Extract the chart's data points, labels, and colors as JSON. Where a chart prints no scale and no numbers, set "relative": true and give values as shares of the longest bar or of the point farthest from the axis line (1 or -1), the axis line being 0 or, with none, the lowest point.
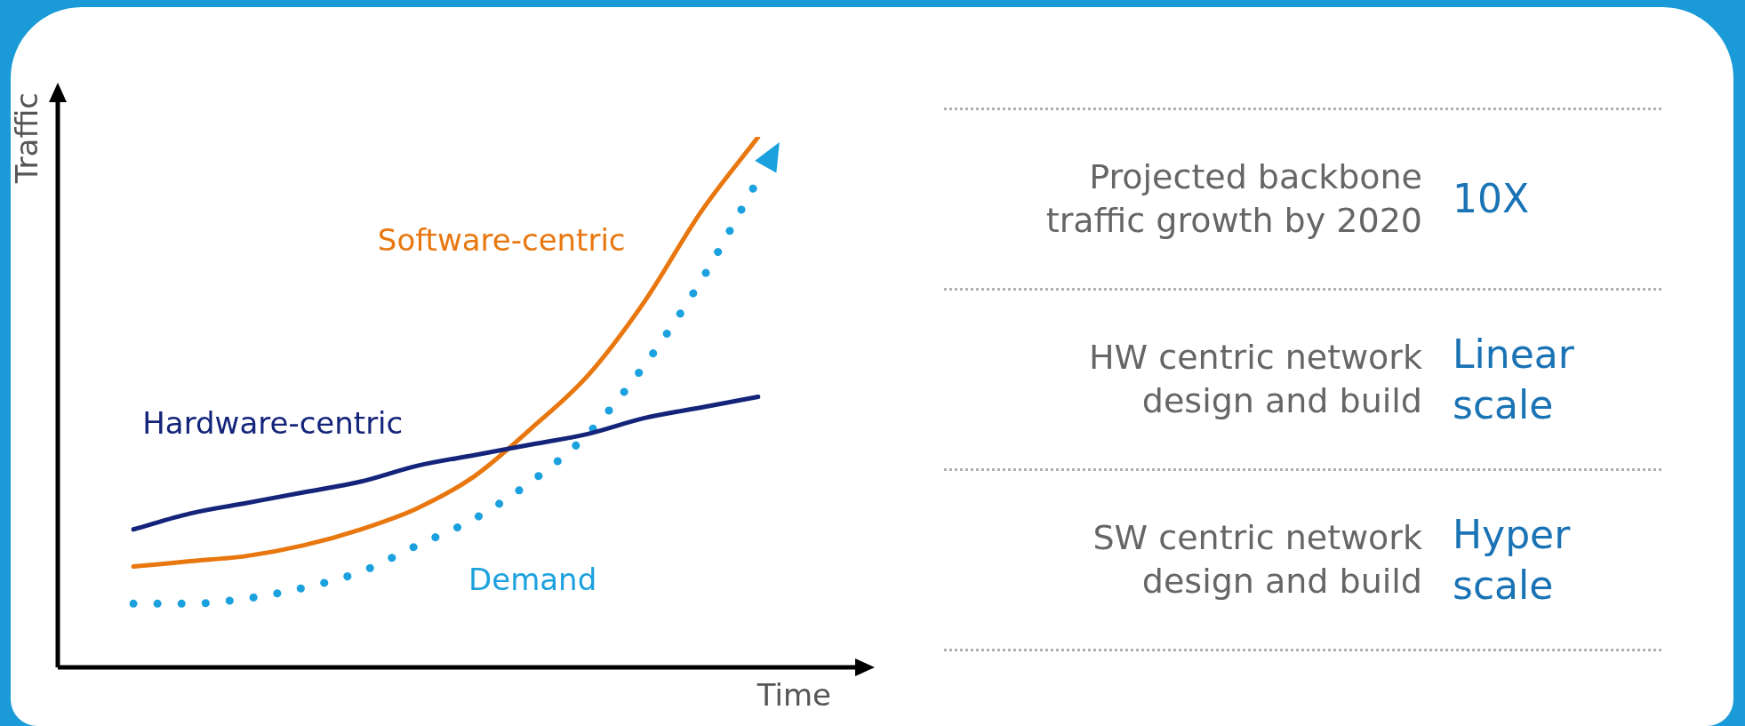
{
  "chart_data": [
    {
      "type": "line",
      "relative": true,
      "xlabel": "Time",
      "ylabel": "Traffic",
      "categories": [
        null,
        null,
        null,
        null,
        null,
        null,
        null,
        null,
        null,
        null,
        null,
        null
      ],
      "legend": false,
      "marker": "none",
      "grid": false,
      "series": [
        {
          "name": "Hardware-centric",
          "color": "#14247a",
          "line_style": "solid",
          "values": [
            0.26,
            0.29,
            0.31,
            0.33,
            0.35,
            0.38,
            0.4,
            0.42,
            0.44,
            0.47,
            0.49,
            0.51
          ]
        },
        {
          "name": "Software-centric",
          "color": "#e8770f",
          "line_style": "solid",
          "values": [
            0.19,
            0.2,
            0.21,
            0.23,
            0.26,
            0.3,
            0.36,
            0.45,
            0.55,
            0.69,
            0.86,
            1
          ]
        },
        {
          "name": "Demand",
          "color": "#1ba1de",
          "line_style": "dotted",
          "values": [
            0.12,
            0.12,
            0.13,
            0.15,
            0.18,
            0.23,
            0.28,
            0.35,
            0.44,
            0.57,
            0.73,
            0.92
          ]
        }
      ]
    },
    {
      "type": "other",
      "annotations": [
        "Projected backbone traffic growth by 2020",
        "10X",
        "HW centric network design and build",
        "Linear scale",
        "SW centric network design and build",
        "Hyper scale"
      ]
    }
  ]
}
